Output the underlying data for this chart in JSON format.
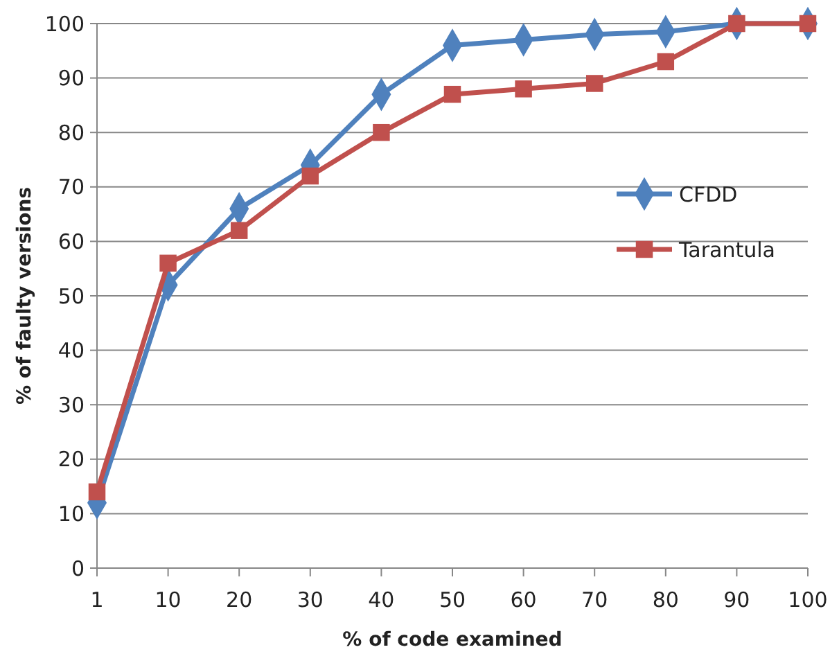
{
  "chart_data": {
    "type": "line",
    "xlabel": "% of code examined",
    "ylabel": "% of faulty versions",
    "categories": [
      "1",
      "10",
      "20",
      "30",
      "40",
      "50",
      "60",
      "70",
      "80",
      "90",
      "100"
    ],
    "series": [
      {
        "name": "CFDD",
        "color": "#4f81bd",
        "marker": "diamond",
        "values": [
          12,
          52,
          66,
          74,
          87,
          96,
          97,
          98,
          98.5,
          100,
          100
        ]
      },
      {
        "name": "Tarantula",
        "color": "#c0504d",
        "marker": "square",
        "values": [
          14,
          56,
          62,
          72,
          80,
          87,
          88,
          89,
          93,
          100,
          100
        ]
      }
    ],
    "ylim": [
      0,
      100
    ],
    "yticks": [
      0,
      10,
      20,
      30,
      40,
      50,
      60,
      70,
      80,
      90,
      100
    ],
    "grid": "y",
    "legend": "right"
  }
}
